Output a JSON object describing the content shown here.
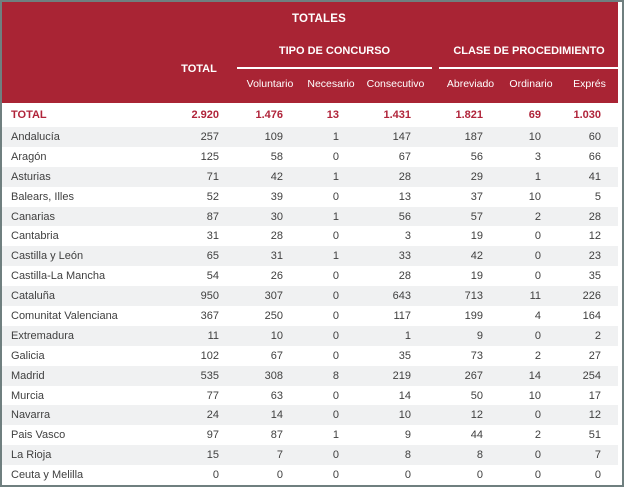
{
  "header": {
    "title": "TOTALES",
    "total_label": "TOTAL",
    "groups": [
      {
        "label": "TIPO DE CONCURSO",
        "columns": [
          "Voluntario",
          "Necesario",
          "Consecutivo"
        ]
      },
      {
        "label": "CLASE DE PROCEDIMIENTO",
        "columns": [
          "Abreviado",
          "Ordinario",
          "Exprés"
        ]
      }
    ]
  },
  "colors": {
    "header_bg": "#A92434",
    "accent_text": "#B0243A",
    "band_row": "#F0F1F2",
    "body_text": "#3F3F3F",
    "border": "#6F7F7F"
  },
  "table": {
    "total_row": {
      "label": "TOTAL",
      "values": [
        "2.920",
        "1.476",
        "13",
        "1.431",
        "1.821",
        "69",
        "1.030"
      ]
    },
    "rows": [
      {
        "label": "Andalucía",
        "values": [
          "257",
          "109",
          "1",
          "147",
          "187",
          "10",
          "60"
        ]
      },
      {
        "label": "Aragón",
        "values": [
          "125",
          "58",
          "0",
          "67",
          "56",
          "3",
          "66"
        ]
      },
      {
        "label": "Asturias",
        "values": [
          "71",
          "42",
          "1",
          "28",
          "29",
          "1",
          "41"
        ]
      },
      {
        "label": "Balears, Illes",
        "values": [
          "52",
          "39",
          "0",
          "13",
          "37",
          "10",
          "5"
        ]
      },
      {
        "label": "Canarias",
        "values": [
          "87",
          "30",
          "1",
          "56",
          "57",
          "2",
          "28"
        ]
      },
      {
        "label": "Cantabria",
        "values": [
          "31",
          "28",
          "0",
          "3",
          "19",
          "0",
          "12"
        ]
      },
      {
        "label": "Castilla y León",
        "values": [
          "65",
          "31",
          "1",
          "33",
          "42",
          "0",
          "23"
        ]
      },
      {
        "label": "Castilla-La Mancha",
        "values": [
          "54",
          "26",
          "0",
          "28",
          "19",
          "0",
          "35"
        ]
      },
      {
        "label": "Cataluña",
        "values": [
          "950",
          "307",
          "0",
          "643",
          "713",
          "11",
          "226"
        ]
      },
      {
        "label": "Comunitat Valenciana",
        "values": [
          "367",
          "250",
          "0",
          "117",
          "199",
          "4",
          "164"
        ]
      },
      {
        "label": "Extremadura",
        "values": [
          "11",
          "10",
          "0",
          "1",
          "9",
          "0",
          "2"
        ]
      },
      {
        "label": "Galicia",
        "values": [
          "102",
          "67",
          "0",
          "35",
          "73",
          "2",
          "27"
        ]
      },
      {
        "label": "Madrid",
        "values": [
          "535",
          "308",
          "8",
          "219",
          "267",
          "14",
          "254"
        ]
      },
      {
        "label": "Murcia",
        "values": [
          "77",
          "63",
          "0",
          "14",
          "50",
          "10",
          "17"
        ]
      },
      {
        "label": "Navarra",
        "values": [
          "24",
          "14",
          "0",
          "10",
          "12",
          "0",
          "12"
        ]
      },
      {
        "label": "Pais Vasco",
        "values": [
          "97",
          "87",
          "1",
          "9",
          "44",
          "2",
          "51"
        ]
      },
      {
        "label": "La Rioja",
        "values": [
          "15",
          "7",
          "0",
          "8",
          "8",
          "0",
          "7"
        ]
      },
      {
        "label": "Ceuta y Melilla",
        "values": [
          "0",
          "0",
          "0",
          "0",
          "0",
          "0",
          "0"
        ]
      }
    ]
  }
}
